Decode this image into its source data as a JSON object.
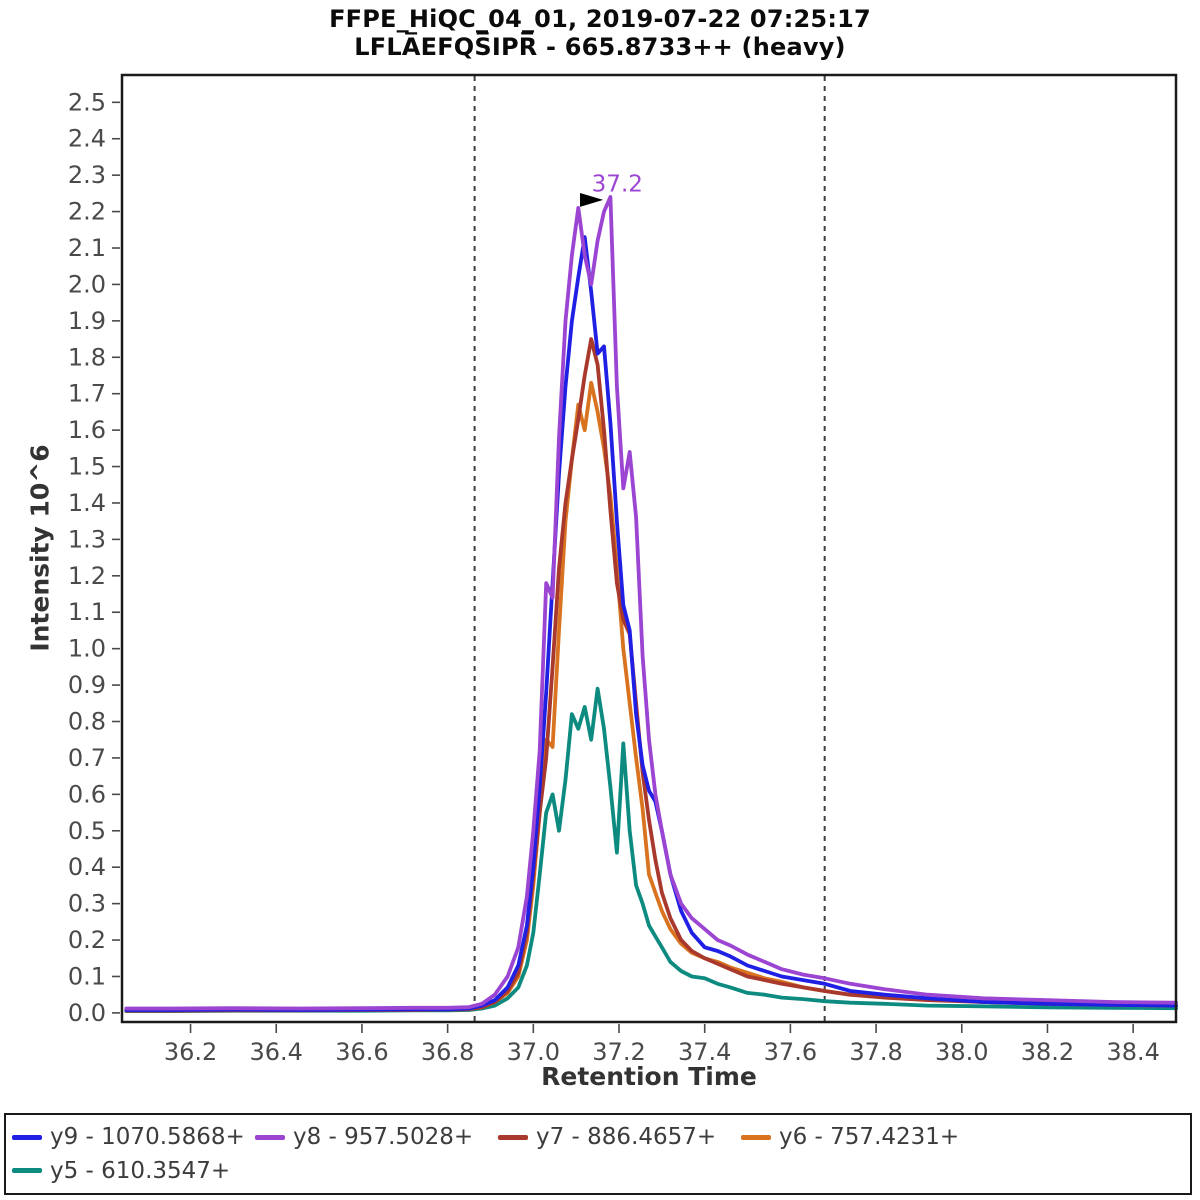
{
  "title": {
    "line1": "FFPE_HiQC_04_01, 2019-07-22 07:25:17",
    "line2": "LFLA̅EFQS̅IPR̅ - 665.8733++ (heavy)"
  },
  "axes": {
    "x_label": "Retention Time",
    "y_label": "Intensity 10^6"
  },
  "legend": {
    "items": [
      {
        "label": "y9 - 1070.5868+",
        "color": "#2020e5"
      },
      {
        "label": "y8 - 957.5028+",
        "color": "#9b45d2"
      },
      {
        "label": "y7 - 886.4657+",
        "color": "#a8392c"
      },
      {
        "label": "y6 - 757.4231+",
        "color": "#d9731f"
      },
      {
        "label": "y5 - 610.3547+",
        "color": "#0e8b80"
      }
    ]
  },
  "chart_data": {
    "type": "line",
    "title": "FFPE_HiQC_04_01, 2019-07-22 07:25:17 / LFLAEFQSIPR - 665.8733++ (heavy)",
    "xlabel": "Retention Time",
    "ylabel": "Intensity 10^6",
    "xlim": [
      36.04,
      38.5
    ],
    "ylim": [
      -0.025,
      2.575
    ],
    "grid": false,
    "legend_position": "bottom",
    "x_ticks": [
      36.2,
      36.4,
      36.6,
      36.8,
      37.0,
      37.2,
      37.4,
      37.6,
      37.8,
      38.0,
      38.2,
      38.4
    ],
    "y_ticks": [
      0.0,
      0.1,
      0.2,
      0.3,
      0.4,
      0.5,
      0.6,
      0.7,
      0.8,
      0.9,
      1.0,
      1.1,
      1.2,
      1.3,
      1.4,
      1.5,
      1.6,
      1.7,
      1.8,
      1.9,
      2.0,
      2.1,
      2.2,
      2.3,
      2.4,
      2.5
    ],
    "x": [
      36.05,
      36.15,
      36.3,
      36.45,
      36.6,
      36.72,
      36.8,
      36.85,
      36.88,
      36.91,
      36.94,
      36.965,
      36.985,
      37.0,
      37.015,
      37.03,
      37.045,
      37.06,
      37.075,
      37.09,
      37.105,
      37.12,
      37.135,
      37.15,
      37.165,
      37.18,
      37.195,
      37.21,
      37.225,
      37.24,
      37.255,
      37.27,
      37.285,
      37.3,
      37.32,
      37.345,
      37.37,
      37.4,
      37.43,
      37.46,
      37.5,
      37.54,
      37.58,
      37.63,
      37.68,
      37.74,
      37.82,
      37.92,
      38.05,
      38.2,
      38.35,
      38.5
    ],
    "series": [
      {
        "name": "y9 - 1070.5868+",
        "color": "#2020e5",
        "values": [
          0.008,
          0.008,
          0.009,
          0.008,
          0.009,
          0.01,
          0.01,
          0.012,
          0.02,
          0.035,
          0.07,
          0.13,
          0.24,
          0.4,
          0.62,
          0.88,
          1.18,
          1.48,
          1.72,
          1.9,
          2.02,
          2.13,
          1.98,
          1.81,
          1.83,
          1.62,
          1.35,
          1.12,
          1.05,
          0.82,
          0.68,
          0.61,
          0.58,
          0.5,
          0.38,
          0.28,
          0.22,
          0.18,
          0.17,
          0.155,
          0.13,
          0.115,
          0.1,
          0.09,
          0.08,
          0.06,
          0.05,
          0.04,
          0.03,
          0.025,
          0.022,
          0.02
        ]
      },
      {
        "name": "y8 - 957.5028+",
        "color": "#9b45d2",
        "values": [
          0.012,
          0.012,
          0.013,
          0.012,
          0.013,
          0.014,
          0.014,
          0.016,
          0.025,
          0.05,
          0.1,
          0.18,
          0.32,
          0.5,
          0.72,
          1.18,
          1.14,
          1.58,
          1.9,
          2.08,
          2.21,
          2.08,
          2.0,
          2.12,
          2.2,
          2.24,
          1.72,
          1.44,
          1.54,
          1.36,
          0.98,
          0.75,
          0.6,
          0.5,
          0.38,
          0.3,
          0.26,
          0.23,
          0.2,
          0.185,
          0.16,
          0.14,
          0.12,
          0.105,
          0.095,
          0.08,
          0.065,
          0.05,
          0.04,
          0.035,
          0.03,
          0.028
        ]
      },
      {
        "name": "y7 - 886.4657+",
        "color": "#a8392c",
        "values": [
          0.006,
          0.006,
          0.007,
          0.007,
          0.008,
          0.008,
          0.009,
          0.01,
          0.015,
          0.03,
          0.06,
          0.11,
          0.22,
          0.38,
          0.55,
          0.7,
          0.95,
          1.22,
          1.4,
          1.52,
          1.63,
          1.75,
          1.85,
          1.78,
          1.6,
          1.38,
          1.18,
          1.08,
          1.04,
          0.85,
          0.66,
          0.53,
          0.42,
          0.33,
          0.26,
          0.2,
          0.17,
          0.15,
          0.135,
          0.12,
          0.1,
          0.09,
          0.08,
          0.07,
          0.06,
          0.05,
          0.042,
          0.035,
          0.03,
          0.025,
          0.022,
          0.02
        ]
      },
      {
        "name": "y6 - 757.4231+",
        "color": "#d9731f",
        "values": [
          0.008,
          0.008,
          0.008,
          0.009,
          0.009,
          0.01,
          0.01,
          0.012,
          0.015,
          0.03,
          0.055,
          0.1,
          0.2,
          0.35,
          0.55,
          0.75,
          0.73,
          1.05,
          1.35,
          1.52,
          1.67,
          1.6,
          1.73,
          1.65,
          1.55,
          1.42,
          1.22,
          1.0,
          0.85,
          0.7,
          0.56,
          0.38,
          0.33,
          0.28,
          0.23,
          0.19,
          0.165,
          0.15,
          0.14,
          0.125,
          0.11,
          0.095,
          0.085,
          0.07,
          0.06,
          0.05,
          0.045,
          0.038,
          0.03,
          0.026,
          0.022,
          0.02
        ]
      },
      {
        "name": "y5 - 610.3547+",
        "color": "#0e8b80",
        "values": [
          0.005,
          0.005,
          0.006,
          0.006,
          0.006,
          0.007,
          0.007,
          0.008,
          0.012,
          0.02,
          0.04,
          0.07,
          0.13,
          0.22,
          0.38,
          0.55,
          0.6,
          0.5,
          0.64,
          0.82,
          0.78,
          0.84,
          0.75,
          0.89,
          0.78,
          0.62,
          0.44,
          0.74,
          0.5,
          0.35,
          0.3,
          0.24,
          0.21,
          0.18,
          0.14,
          0.115,
          0.1,
          0.095,
          0.08,
          0.07,
          0.055,
          0.05,
          0.042,
          0.038,
          0.032,
          0.028,
          0.025,
          0.02,
          0.018,
          0.015,
          0.014,
          0.013
        ]
      }
    ],
    "draw_order": [
      4,
      3,
      2,
      0,
      1
    ],
    "line_width": 3.8,
    "peak_boundaries": {
      "start_rt": 36.863,
      "end_rt": 37.68,
      "color": "#3f3f3f"
    },
    "peak_annotation": {
      "label": "37.2",
      "color": "#9b45d2",
      "text_rt": 37.196,
      "text_val": 2.255,
      "arrow": {
        "tail_rt": 37.109,
        "tip_rt": 37.163,
        "tip_val": 2.232,
        "top_val": 2.251,
        "bottom_val": 2.213,
        "color": "#000000"
      }
    },
    "tick_color": "#4a4a4a",
    "border_color": "#1a1a1a"
  }
}
